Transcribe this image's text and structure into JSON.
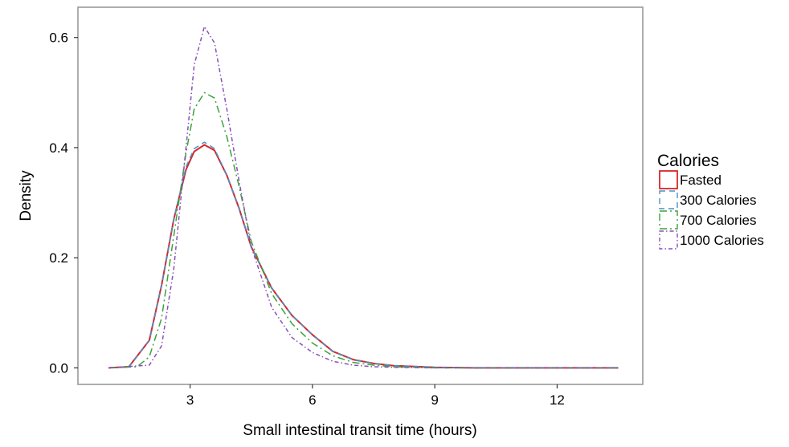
{
  "chart_data": {
    "type": "line",
    "title": "",
    "xlabel": "Small intestinal transit time (hours)",
    "ylabel": "Density",
    "xlim": [
      0.25,
      14.1
    ],
    "ylim": [
      -0.03,
      0.655
    ],
    "x_ticks": [
      3,
      6,
      9,
      12
    ],
    "x_tick_labels": [
      "3",
      "6",
      "9",
      "12"
    ],
    "y_ticks": [
      0.0,
      0.2,
      0.4,
      0.6
    ],
    "y_tick_labels": [
      "0.0",
      "0.2",
      "0.4",
      "0.6"
    ],
    "grid": false,
    "legend": {
      "title": "Calories",
      "position": "right"
    },
    "series": [
      {
        "name": "Fasted",
        "color": "#d62728",
        "dash": "solid",
        "points": [
          [
            1.0,
            0.0
          ],
          [
            1.5,
            0.002
          ],
          [
            2.0,
            0.05
          ],
          [
            2.3,
            0.15
          ],
          [
            2.6,
            0.27
          ],
          [
            2.9,
            0.36
          ],
          [
            3.1,
            0.393
          ],
          [
            3.35,
            0.405
          ],
          [
            3.6,
            0.395
          ],
          [
            3.9,
            0.35
          ],
          [
            4.2,
            0.29
          ],
          [
            4.5,
            0.22
          ],
          [
            5.0,
            0.145
          ],
          [
            5.5,
            0.095
          ],
          [
            6.0,
            0.06
          ],
          [
            6.5,
            0.03
          ],
          [
            7.0,
            0.015
          ],
          [
            7.5,
            0.008
          ],
          [
            8.0,
            0.004
          ],
          [
            9.0,
            0.001
          ],
          [
            10.0,
            0.0
          ],
          [
            13.5,
            0.0
          ]
        ]
      },
      {
        "name": "300 Calories",
        "color": "#4a90c8",
        "dash": "dashed",
        "points": [
          [
            1.0,
            0.0
          ],
          [
            1.5,
            0.002
          ],
          [
            2.0,
            0.05
          ],
          [
            2.3,
            0.15
          ],
          [
            2.6,
            0.27
          ],
          [
            2.9,
            0.365
          ],
          [
            3.1,
            0.398
          ],
          [
            3.35,
            0.41
          ],
          [
            3.6,
            0.398
          ],
          [
            3.9,
            0.35
          ],
          [
            4.2,
            0.29
          ],
          [
            4.5,
            0.22
          ],
          [
            5.0,
            0.145
          ],
          [
            5.5,
            0.095
          ],
          [
            6.0,
            0.06
          ],
          [
            6.5,
            0.03
          ],
          [
            7.0,
            0.015
          ],
          [
            7.5,
            0.008
          ],
          [
            8.0,
            0.004
          ],
          [
            9.0,
            0.001
          ],
          [
            10.0,
            0.0
          ],
          [
            13.5,
            0.0
          ]
        ]
      },
      {
        "name": "700 Calories",
        "color": "#3aa33a",
        "dash": "dashdot",
        "points": [
          [
            1.0,
            0.0
          ],
          [
            1.7,
            0.002
          ],
          [
            2.0,
            0.02
          ],
          [
            2.3,
            0.09
          ],
          [
            2.6,
            0.24
          ],
          [
            2.9,
            0.39
          ],
          [
            3.1,
            0.47
          ],
          [
            3.35,
            0.5
          ],
          [
            3.6,
            0.49
          ],
          [
            3.9,
            0.42
          ],
          [
            4.2,
            0.33
          ],
          [
            4.5,
            0.23
          ],
          [
            5.0,
            0.135
          ],
          [
            5.5,
            0.08
          ],
          [
            6.0,
            0.045
          ],
          [
            6.5,
            0.022
          ],
          [
            7.0,
            0.01
          ],
          [
            7.5,
            0.005
          ],
          [
            8.0,
            0.002
          ],
          [
            9.0,
            0.0
          ],
          [
            13.5,
            0.0
          ]
        ]
      },
      {
        "name": "1000 Calories",
        "color": "#8a4fb8",
        "dash": "longdash",
        "points": [
          [
            1.0,
            0.0
          ],
          [
            2.0,
            0.005
          ],
          [
            2.3,
            0.04
          ],
          [
            2.6,
            0.18
          ],
          [
            2.9,
            0.4
          ],
          [
            3.1,
            0.55
          ],
          [
            3.35,
            0.62
          ],
          [
            3.6,
            0.59
          ],
          [
            3.9,
            0.47
          ],
          [
            4.2,
            0.34
          ],
          [
            4.5,
            0.22
          ],
          [
            5.0,
            0.11
          ],
          [
            5.5,
            0.055
          ],
          [
            6.0,
            0.028
          ],
          [
            6.5,
            0.012
          ],
          [
            7.0,
            0.005
          ],
          [
            7.5,
            0.002
          ],
          [
            8.0,
            0.001
          ],
          [
            9.0,
            0.0
          ],
          [
            13.5,
            0.0
          ]
        ]
      }
    ]
  }
}
